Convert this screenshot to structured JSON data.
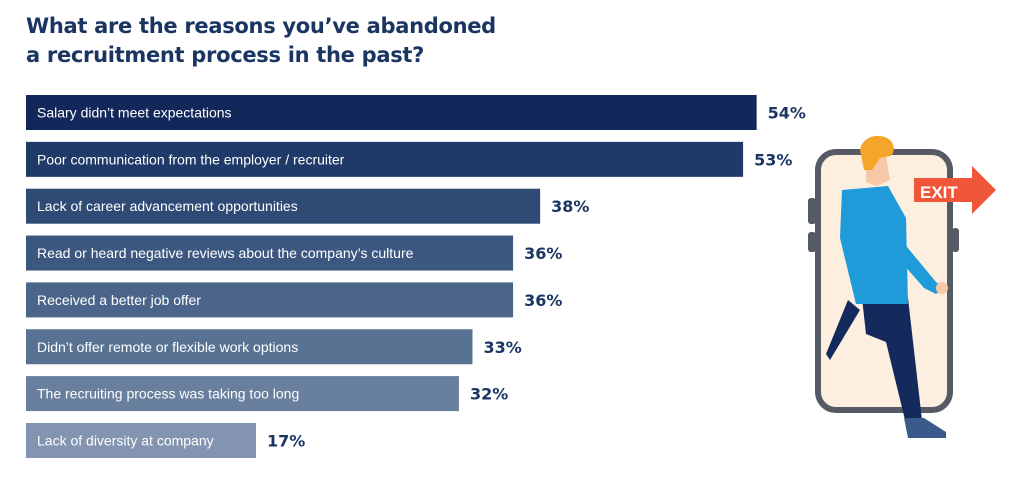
{
  "title_lines": [
    "What are the reasons you’ve abandoned",
    "a recruitment process in the past?"
  ],
  "chart_data": {
    "type": "bar",
    "orientation": "horizontal",
    "title": "What are the reasons you’ve abandoned a recruitment process in the past?",
    "categories": [
      "Salary didn’t meet expectations",
      "Poor communication from the employer / recruiter",
      "Lack of career advancement opportunities",
      "Read or heard negative reviews about the company’s culture",
      "Received a better job offer",
      "Didn’t offer remote or flexible work options",
      "The recruiting process was taking too long",
      "Lack of diversity at company"
    ],
    "values": [
      54,
      53,
      38,
      36,
      36,
      33,
      32,
      17
    ],
    "value_labels": [
      "54%",
      "53%",
      "38%",
      "36%",
      "36%",
      "33%",
      "32%",
      "17%"
    ],
    "unit": "%",
    "xlim": [
      0,
      100
    ],
    "grid": false,
    "bar_colors": [
      "#13285a",
      "#1f3a68",
      "#2f4a75",
      "#3d5880",
      "#4a6589",
      "#587293",
      "#687f9e",
      "#8294b0"
    ]
  },
  "illustration": {
    "exit_sign_text": "EXIT",
    "colors": {
      "sign": "#f0573a",
      "phone_frame": "#565a64",
      "phone_screen": "#fcefdf",
      "hoodie": "#1f9bd9",
      "pants": "#142a5c",
      "hair": "#f4a62a",
      "skin": "#f6c8a7"
    }
  }
}
